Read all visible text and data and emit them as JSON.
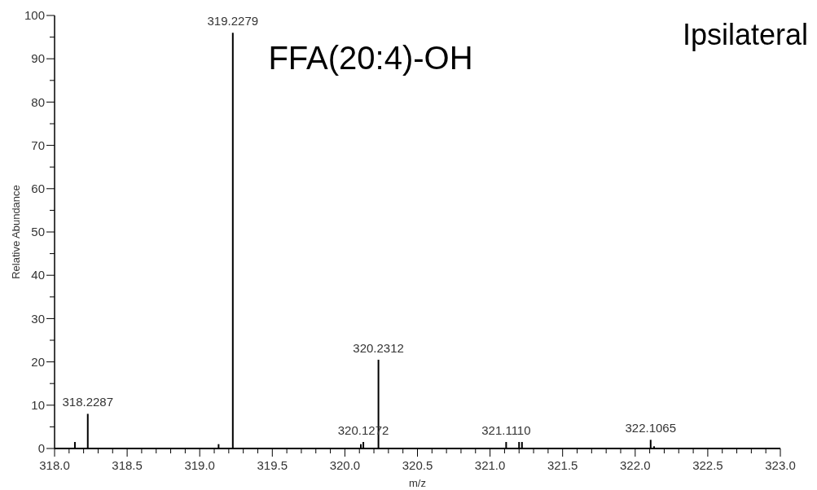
{
  "chart_data": {
    "type": "bar",
    "xlabel": "m/z",
    "ylabel": "Relative Abundance",
    "annotations": [
      "FFA(20:4)-OH",
      "Ipsilateral",
      {
        "text": "318.2287",
        "x": 318.2287,
        "y": 8
      },
      {
        "text": "319.2279",
        "x": 319.2279,
        "y": 96
      },
      {
        "text": "320.1272",
        "x": 320.1272,
        "y": 1.5
      },
      {
        "text": "320.2312",
        "x": 320.2312,
        "y": 20.5
      },
      {
        "text": "321.1110",
        "x": 321.111,
        "y": 1.5
      },
      {
        "text": "322.1065",
        "x": 322.1065,
        "y": 2
      }
    ],
    "x": [
      318.14,
      318.2287,
      319.13,
      319.2279,
      320.11,
      320.1272,
      320.2312,
      321.111,
      321.2,
      321.22,
      322.1065,
      322.13
    ],
    "values": [
      1.5,
      8,
      1,
      96,
      1,
      1.5,
      20.5,
      1.5,
      1.5,
      1.5,
      2,
      0.5
    ],
    "color": "#000000",
    "xlim": [
      318,
      323
    ],
    "xticks": [
      {
        "value": 318,
        "label": "318.0"
      },
      {
        "value": 318.1,
        "label": null
      },
      {
        "value": 318.2,
        "label": null
      },
      {
        "value": 318.3,
        "label": null
      },
      {
        "value": 318.4,
        "label": null
      },
      {
        "value": 318.5,
        "label": "318.5"
      },
      {
        "value": 318.6,
        "label": null
      },
      {
        "value": 318.7,
        "label": null
      },
      {
        "value": 318.8,
        "label": null
      },
      {
        "value": 318.9,
        "label": null
      },
      {
        "value": 319,
        "label": "319.0"
      },
      {
        "value": 319.1,
        "label": null
      },
      {
        "value": 319.2,
        "label": null
      },
      {
        "value": 319.3,
        "label": null
      },
      {
        "value": 319.4,
        "label": null
      },
      {
        "value": 319.5,
        "label": "319.5"
      },
      {
        "value": 319.6,
        "label": null
      },
      {
        "value": 319.7,
        "label": null
      },
      {
        "value": 319.8,
        "label": null
      },
      {
        "value": 319.9,
        "label": null
      },
      {
        "value": 320,
        "label": "320.0"
      },
      {
        "value": 320.1,
        "label": null
      },
      {
        "value": 320.2,
        "label": null
      },
      {
        "value": 320.3,
        "label": null
      },
      {
        "value": 320.4,
        "label": null
      },
      {
        "value": 320.5,
        "label": "320.5"
      },
      {
        "value": 320.6,
        "label": null
      },
      {
        "value": 320.7,
        "label": null
      },
      {
        "value": 320.8,
        "label": null
      },
      {
        "value": 320.9,
        "label": null
      },
      {
        "value": 321,
        "label": "321.0"
      },
      {
        "value": 321.1,
        "label": null
      },
      {
        "value": 321.2,
        "label": null
      },
      {
        "value": 321.3,
        "label": null
      },
      {
        "value": 321.4,
        "label": null
      },
      {
        "value": 321.5,
        "label": "321.5"
      },
      {
        "value": 321.6,
        "label": null
      },
      {
        "value": 321.7,
        "label": null
      },
      {
        "value": 321.8,
        "label": null
      },
      {
        "value": 321.9,
        "label": null
      },
      {
        "value": 322,
        "label": "322.0"
      },
      {
        "value": 322.1,
        "label": null
      },
      {
        "value": 322.2,
        "label": null
      },
      {
        "value": 322.3,
        "label": null
      },
      {
        "value": 322.4,
        "label": null
      },
      {
        "value": 322.5,
        "label": "322.5"
      },
      {
        "value": 322.6,
        "label": null
      },
      {
        "value": 322.7,
        "label": null
      },
      {
        "value": 322.8,
        "label": null
      },
      {
        "value": 322.9,
        "label": null
      },
      {
        "value": 323,
        "label": "323.0"
      }
    ],
    "ylim": [
      0,
      100
    ],
    "yticks": [
      0,
      {
        "value": 5,
        "label": null
      },
      10,
      {
        "value": 15,
        "label": null
      },
      20,
      {
        "value": 25,
        "label": null
      },
      30,
      {
        "value": 35,
        "label": null
      },
      40,
      {
        "value": 45,
        "label": null
      },
      50,
      {
        "value": 55,
        "label": null
      },
      60,
      {
        "value": 65,
        "label": null
      },
      70,
      {
        "value": 75,
        "label": null
      },
      80,
      {
        "value": 85,
        "label": null
      },
      90,
      {
        "value": 95,
        "label": null
      },
      100
    ],
    "grid": false
  }
}
